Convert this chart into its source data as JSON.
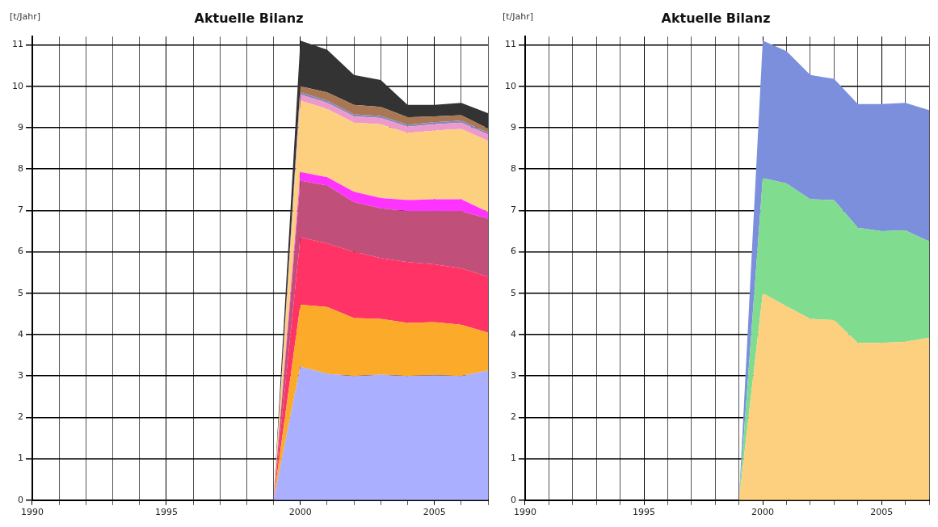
{
  "chart_data": [
    {
      "type": "area",
      "title": "Aktuelle Bilanz",
      "ylabel": "[t/Jahr]",
      "stacked": true,
      "grid": true,
      "legend": false,
      "x": [
        1999,
        2000,
        2001,
        2002,
        2003,
        2004,
        2005,
        2006,
        2007
      ],
      "xlim": [
        1990,
        2007
      ],
      "xticks": [
        1990,
        {
          "value": 1991,
          "label": null
        },
        {
          "value": 1992,
          "label": null
        },
        {
          "value": 1993,
          "label": null
        },
        {
          "value": 1994,
          "label": null
        },
        1995,
        {
          "value": 1996,
          "label": null
        },
        {
          "value": 1997,
          "label": null
        },
        {
          "value": 1998,
          "label": null
        },
        {
          "value": 1999,
          "label": null
        },
        2000,
        {
          "value": 2001,
          "label": null
        },
        {
          "value": 2002,
          "label": null
        },
        {
          "value": 2003,
          "label": null
        },
        {
          "value": 2004,
          "label": null
        },
        2005,
        {
          "value": 2006,
          "label": null
        },
        {
          "value": 2007,
          "label": null
        }
      ],
      "ylim": [
        0,
        11.2
      ],
      "yticks": [
        0,
        1,
        2,
        3,
        4,
        5,
        6,
        7,
        8,
        9,
        10,
        11
      ],
      "series": [
        {
          "color": "#aab0ff",
          "values": [
            0,
            3.23,
            3.05,
            3.0,
            3.03,
            3.0,
            3.02,
            3.0,
            3.13
          ]
        },
        {
          "color": "#fbaa2a",
          "values": [
            0,
            1.49,
            1.62,
            1.4,
            1.35,
            1.28,
            1.28,
            1.24,
            0.92
          ]
        },
        {
          "color": "#ff3366",
          "values": [
            0,
            1.63,
            1.53,
            1.6,
            1.47,
            1.47,
            1.4,
            1.36,
            1.35
          ]
        },
        {
          "color": "#c0507a",
          "values": [
            0,
            1.37,
            1.4,
            1.2,
            1.2,
            1.23,
            1.28,
            1.38,
            1.4
          ]
        },
        {
          "color": "#ff33ff",
          "values": [
            0,
            0.21,
            0.2,
            0.25,
            0.25,
            0.27,
            0.29,
            0.29,
            0.16
          ]
        },
        {
          "color": "#fdd080",
          "values": [
            0,
            1.72,
            1.65,
            1.67,
            1.78,
            1.62,
            1.66,
            1.7,
            1.72
          ]
        },
        {
          "color": "#ee99cc",
          "values": [
            0,
            0.15,
            0.15,
            0.15,
            0.15,
            0.15,
            0.15,
            0.15,
            0.15
          ]
        },
        {
          "color": "#8888bb",
          "values": [
            0,
            0.05,
            0.05,
            0.05,
            0.05,
            0.05,
            0.05,
            0.05,
            0.05
          ]
        },
        {
          "color": "#aa7755",
          "values": [
            0,
            0.15,
            0.2,
            0.23,
            0.22,
            0.18,
            0.14,
            0.13,
            0.1
          ]
        },
        {
          "color": "#333333",
          "values": [
            0,
            1.1,
            1.03,
            0.72,
            0.65,
            0.3,
            0.28,
            0.3,
            0.37
          ]
        }
      ]
    },
    {
      "type": "area",
      "title": "Aktuelle Bilanz",
      "ylabel": "[t/Jahr]",
      "stacked": true,
      "grid": true,
      "legend": false,
      "x": [
        1999,
        2000,
        2001,
        2002,
        2003,
        2004,
        2005,
        2006,
        2007
      ],
      "xlim": [
        1990,
        2007
      ],
      "xticks": [
        1990,
        {
          "value": 1991,
          "label": null
        },
        {
          "value": 1992,
          "label": null
        },
        {
          "value": 1993,
          "label": null
        },
        {
          "value": 1994,
          "label": null
        },
        1995,
        {
          "value": 1996,
          "label": null
        },
        {
          "value": 1997,
          "label": null
        },
        {
          "value": 1998,
          "label": null
        },
        {
          "value": 1999,
          "label": null
        },
        2000,
        {
          "value": 2001,
          "label": null
        },
        {
          "value": 2002,
          "label": null
        },
        {
          "value": 2003,
          "label": null
        },
        {
          "value": 2004,
          "label": null
        },
        2005,
        {
          "value": 2006,
          "label": null
        },
        {
          "value": 2007,
          "label": null
        }
      ],
      "ylim": [
        0,
        11.2
      ],
      "yticks": [
        0,
        1,
        2,
        3,
        4,
        5,
        6,
        7,
        8,
        9,
        10,
        11
      ],
      "series": [
        {
          "color": "#fdd080",
          "values": [
            0,
            5.0,
            4.68,
            4.38,
            4.35,
            3.8,
            3.8,
            3.83,
            3.92
          ]
        },
        {
          "color": "#80dd90",
          "values": [
            0,
            2.78,
            2.97,
            2.89,
            2.9,
            2.78,
            2.7,
            2.69,
            2.33
          ]
        },
        {
          "color": "#7b8fdd",
          "values": [
            0,
            3.32,
            3.2,
            3.0,
            2.93,
            2.99,
            3.07,
            3.08,
            3.17
          ]
        }
      ]
    }
  ]
}
